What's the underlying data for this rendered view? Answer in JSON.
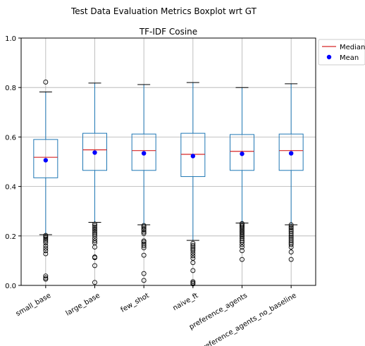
{
  "suptitle": "Test Data Evaluation Metrics Boxplot wrt GT",
  "chart_data": {
    "type": "boxplot",
    "title": "TF-IDF Cosine",
    "xlabel": "",
    "ylabel": "",
    "ylim": [
      0.0,
      1.0
    ],
    "yticks": [
      "0.0",
      "0.2",
      "0.4",
      "0.6",
      "0.8",
      "1.0"
    ],
    "grid": true,
    "legend_position": "top-right",
    "legend": [
      {
        "label": "Median",
        "marker": "line",
        "color": "#d62728"
      },
      {
        "label": "Mean",
        "marker": "dot",
        "color": "#0000ff"
      }
    ],
    "colors": {
      "box": "#1f77b4",
      "whisker": "#1f77b4",
      "cap": "#000000",
      "median": "#d62728",
      "mean": "#0000ff",
      "grid": "#b0b0b0"
    },
    "categories": [
      "small_base",
      "large_base",
      "few_shot",
      "naive_ft",
      "preference_agents",
      "preference_agents_no_baseline"
    ],
    "boxes": [
      {
        "category": "small_base",
        "whislo": 0.205,
        "q1": 0.435,
        "median": 0.518,
        "q3": 0.59,
        "whishi": 0.782,
        "mean": 0.506,
        "fliers": [
          0.822,
          0.202,
          0.198,
          0.193,
          0.187,
          0.18,
          0.172,
          0.16,
          0.15,
          0.14,
          0.128,
          0.038,
          0.03,
          0.025
        ]
      },
      {
        "category": "large_base",
        "whislo": 0.255,
        "q1": 0.465,
        "median": 0.548,
        "q3": 0.615,
        "whishi": 0.818,
        "mean": 0.537,
        "fliers": [
          0.248,
          0.242,
          0.235,
          0.228,
          0.222,
          0.215,
          0.208,
          0.2,
          0.19,
          0.18,
          0.172,
          0.155,
          0.115,
          0.112,
          0.08,
          0.012
        ]
      },
      {
        "category": "few_shot",
        "whislo": 0.245,
        "q1": 0.465,
        "median": 0.545,
        "q3": 0.612,
        "whishi": 0.812,
        "mean": 0.534,
        "fliers": [
          0.242,
          0.236,
          0.23,
          0.224,
          0.216,
          0.21,
          0.18,
          0.175,
          0.168,
          0.16,
          0.152,
          0.122,
          0.048,
          0.02
        ]
      },
      {
        "category": "naive_ft",
        "whislo": 0.182,
        "q1": 0.44,
        "median": 0.53,
        "q3": 0.615,
        "whishi": 0.82,
        "mean": 0.523,
        "fliers": [
          0.17,
          0.162,
          0.155,
          0.148,
          0.14,
          0.13,
          0.12,
          0.11,
          0.092,
          0.06,
          0.015,
          0.01,
          0.006
        ]
      },
      {
        "category": "preference_agents",
        "whislo": 0.252,
        "q1": 0.465,
        "median": 0.542,
        "q3": 0.61,
        "whishi": 0.8,
        "mean": 0.532,
        "fliers": [
          0.25,
          0.245,
          0.24,
          0.234,
          0.228,
          0.222,
          0.216,
          0.21,
          0.204,
          0.198,
          0.19,
          0.182,
          0.175,
          0.165,
          0.155,
          0.14,
          0.105
        ]
      },
      {
        "category": "preference_agents_no_baseline",
        "whislo": 0.245,
        "q1": 0.465,
        "median": 0.545,
        "q3": 0.612,
        "whishi": 0.815,
        "mean": 0.534,
        "fliers": [
          0.245,
          0.238,
          0.232,
          0.225,
          0.218,
          0.21,
          0.202,
          0.195,
          0.188,
          0.18,
          0.172,
          0.165,
          0.155,
          0.135,
          0.105
        ]
      }
    ]
  }
}
